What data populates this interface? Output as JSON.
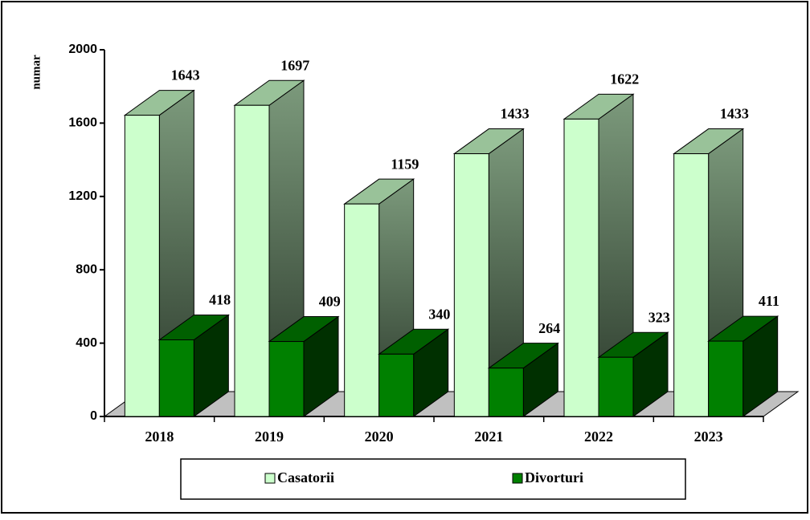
{
  "chart_data": {
    "type": "bar3d",
    "y_label": "numar",
    "categories": [
      "2018",
      "2019",
      "2020",
      "2021",
      "2022",
      "2023"
    ],
    "series": [
      {
        "name": "Casatorii",
        "color": "#ccffcc",
        "values": [
          1643,
          1697,
          1159,
          1433,
          1622,
          1433
        ]
      },
      {
        "name": "Divorturi",
        "color": "#008000",
        "values": [
          418,
          409,
          340,
          264,
          323,
          411
        ]
      }
    ],
    "ylim": [
      0,
      2000
    ],
    "yticks": [
      0,
      400,
      800,
      1200,
      1600,
      2000
    ]
  }
}
